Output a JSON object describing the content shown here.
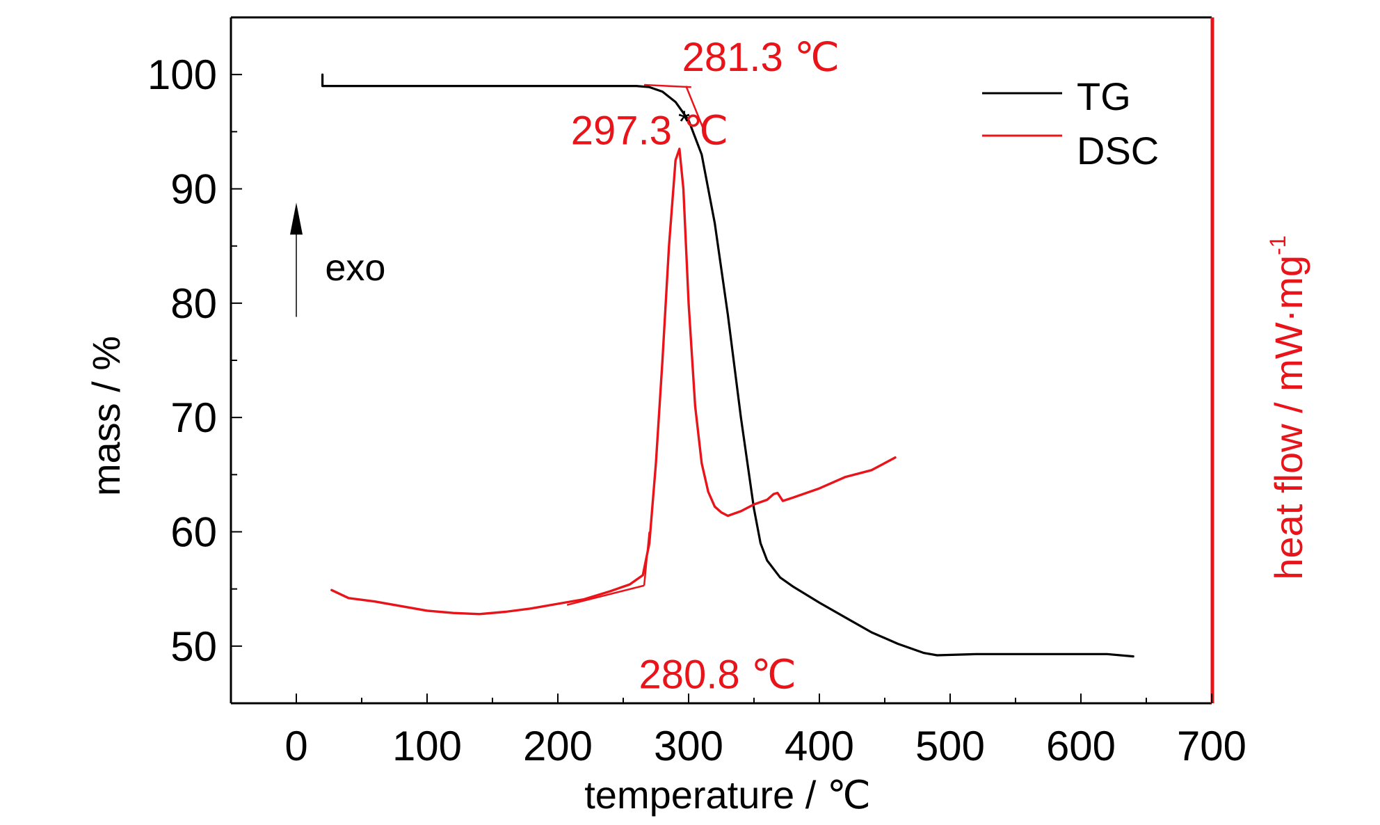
{
  "chart_data": {
    "type": "line",
    "xlabel": "temperature / ℃",
    "ylabel_left": "mass / %",
    "ylabel_right": "heat flow / mW·mg",
    "ylabel_right_superscript": "-1",
    "xlim": [
      -50,
      700
    ],
    "ylim_left": [
      45,
      105
    ],
    "x_ticks": [
      0,
      100,
      200,
      300,
      400,
      500,
      600,
      700
    ],
    "y_ticks_left": [
      50,
      60,
      70,
      80,
      90,
      100
    ],
    "grid": false,
    "legend_position": "top-right",
    "colors": {
      "TG": "#000000",
      "DSC": "#e8141a",
      "right_axis": "#e8141a",
      "annotation": "#e8141a"
    },
    "series": [
      {
        "name": "TG",
        "axis": "left",
        "x": [
          20,
          20,
          22,
          50,
          100,
          150,
          200,
          240,
          260,
          270,
          280,
          290,
          300,
          310,
          320,
          330,
          340,
          350,
          355,
          360,
          370,
          380,
          390,
          400,
          420,
          440,
          460,
          480,
          490,
          520,
          560,
          600,
          620,
          640
        ],
        "y": [
          100,
          99,
          99,
          99,
          99,
          99,
          99,
          99,
          99,
          98.9,
          98.5,
          97.6,
          96,
          93,
          87,
          79,
          70,
          62,
          59,
          57.5,
          56,
          55.2,
          54.5,
          53.8,
          52.5,
          51.2,
          50.2,
          49.4,
          49.2,
          49.3,
          49.3,
          49.3,
          49.3,
          49.1
        ]
      },
      {
        "name": "DSC",
        "axis": "right",
        "values_in_left_axis_scale": true,
        "x": [
          27,
          40,
          60,
          80,
          100,
          120,
          140,
          160,
          180,
          200,
          220,
          240,
          255,
          265,
          270,
          275,
          280,
          285,
          290,
          293,
          296,
          300,
          305,
          310,
          315,
          320,
          325,
          330,
          340,
          350,
          360,
          365,
          368,
          372,
          380,
          400,
          420,
          440,
          458
        ],
        "y": [
          54.9,
          54.2,
          53.9,
          53.5,
          53.1,
          52.9,
          52.8,
          53,
          53.3,
          53.7,
          54.1,
          54.8,
          55.4,
          56.2,
          59,
          66,
          75,
          85,
          92.5,
          93.5,
          90,
          80,
          71,
          66,
          63.5,
          62.2,
          61.7,
          61.4,
          61.8,
          62.4,
          62.8,
          63.3,
          63.4,
          62.7,
          63,
          63.8,
          64.8,
          65.4,
          66.5
        ]
      }
    ],
    "onset_tangents": [
      {
        "series": "DSC",
        "from": [
          207,
          53.6
        ],
        "to": [
          266,
          55.3
        ]
      },
      {
        "series": "DSC",
        "from": [
          266,
          55.3
        ],
        "to": [
          270,
          60
        ]
      },
      {
        "series": "TG",
        "from": [
          266,
          99.1
        ],
        "to": [
          302,
          98.9
        ]
      },
      {
        "series": "TG",
        "from": [
          298,
          99
        ],
        "to": [
          315,
          94.2
        ]
      }
    ],
    "annotations": [
      {
        "text": "281.3 ℃",
        "x": 295,
        "y": 100.3
      },
      {
        "text": "297.3 ℃",
        "x": 210,
        "y": 93.9
      },
      {
        "text": "280.8 ℃",
        "x": 262,
        "y": 46.3
      },
      {
        "text": "*",
        "x": 292,
        "y": 95
      },
      {
        "text": "exo",
        "x": 22,
        "y": 82
      }
    ]
  }
}
